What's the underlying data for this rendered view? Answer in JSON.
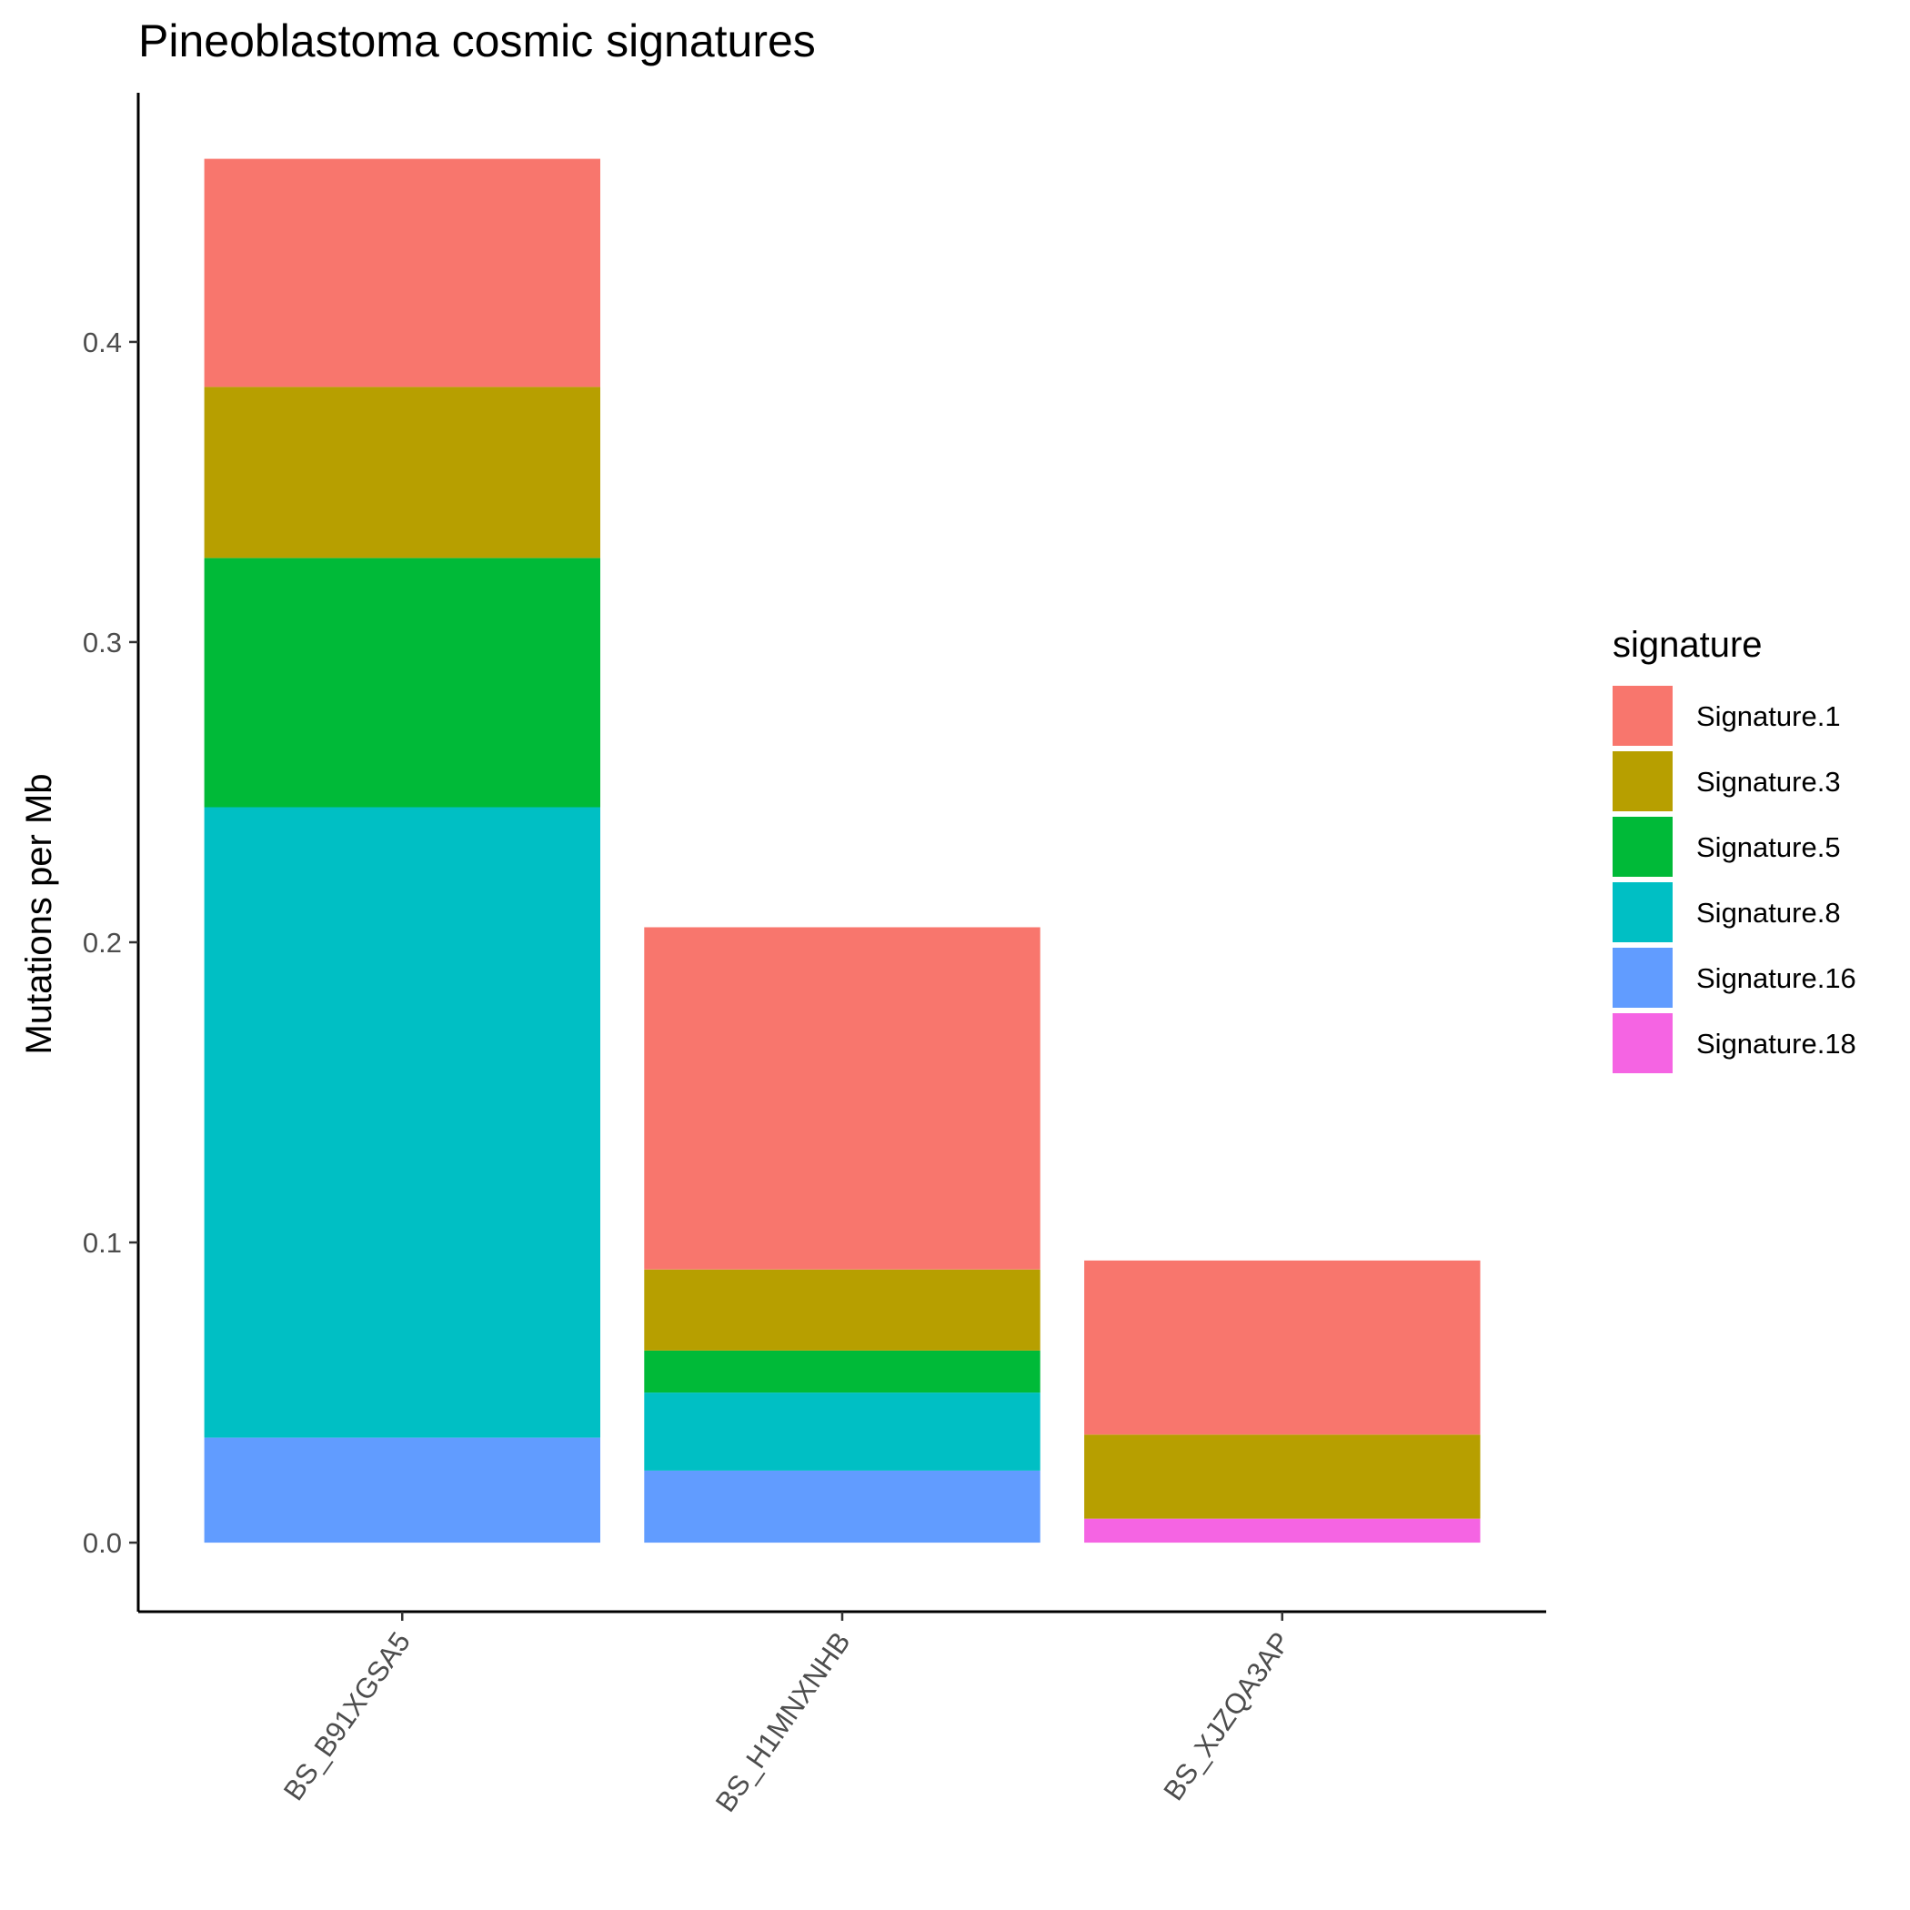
{
  "chart_data": {
    "type": "bar",
    "stacked": true,
    "title": "Pineoblastoma cosmic signatures",
    "xlabel": "",
    "ylabel": "Mutations per Mb",
    "ylim": [
      -0.023,
      0.483
    ],
    "yticks": [
      0.0,
      0.1,
      0.2,
      0.3,
      0.4
    ],
    "ytick_labels": [
      "0.0",
      "0.1",
      "0.2",
      "0.3",
      "0.4"
    ],
    "grid": false,
    "legend": {
      "title": "signature",
      "position": "right"
    },
    "categories": [
      "BS_B91XGSA5",
      "BS_H1MNXNHB",
      "BS_XJZQA3AP"
    ],
    "series": [
      {
        "name": "Signature.1",
        "color": "#F8766D",
        "values": [
          0.076,
          0.114,
          0.058
        ]
      },
      {
        "name": "Signature.3",
        "color": "#B79F00",
        "values": [
          0.057,
          0.027,
          0.028
        ]
      },
      {
        "name": "Signature.5",
        "color": "#00BA38",
        "values": [
          0.083,
          0.014,
          0.0
        ]
      },
      {
        "name": "Signature.8",
        "color": "#00BFC4",
        "values": [
          0.21,
          0.026,
          0.0
        ]
      },
      {
        "name": "Signature.16",
        "color": "#619CFF",
        "values": [
          0.035,
          0.024,
          0.0
        ]
      },
      {
        "name": "Signature.18",
        "color": "#F564E3",
        "values": [
          0.0,
          0.0,
          0.008
        ]
      }
    ]
  }
}
